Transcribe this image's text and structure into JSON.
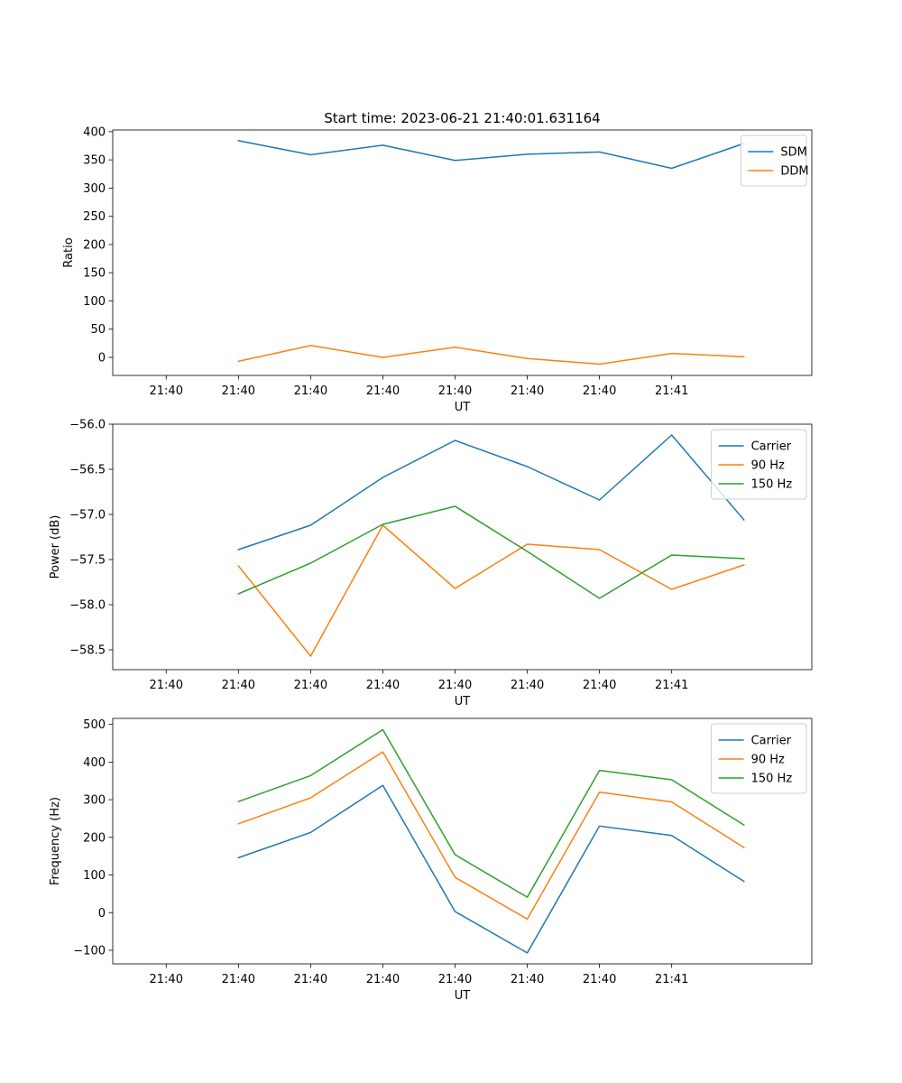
{
  "title": "Start time: 2023-06-21 21:40:01.631164",
  "chart_data": [
    {
      "type": "line",
      "title": "Start time: 2023-06-21 21:40:01.631164",
      "xlabel": "UT",
      "ylabel": "Ratio",
      "x_tick_labels": [
        "21:40",
        "21:40",
        "21:40",
        "21:40",
        "21:40",
        "21:40",
        "21:40",
        "21:41"
      ],
      "xlim": [
        -0.74,
        8.94
      ],
      "x": [
        1,
        2,
        3,
        4,
        5,
        6,
        7,
        8
      ],
      "yticks": [
        0,
        50,
        100,
        150,
        200,
        250,
        300,
        350,
        400
      ],
      "ylim": [
        -32,
        403
      ],
      "legend": "top-right",
      "series": [
        {
          "name": "SDM",
          "color": "#1f77b4",
          "values": [
            384,
            359,
            376,
            349,
            360,
            364,
            335,
            379
          ]
        },
        {
          "name": "DDM",
          "color": "#ff7f0e",
          "values": [
            -7,
            21,
            0,
            18,
            -2,
            -12,
            7,
            1
          ]
        }
      ]
    },
    {
      "type": "line",
      "xlabel": "UT",
      "ylabel": "Power (dB)",
      "x_tick_labels": [
        "21:40",
        "21:40",
        "21:40",
        "21:40",
        "21:40",
        "21:40",
        "21:40",
        "21:41"
      ],
      "xlim": [
        -0.74,
        8.94
      ],
      "x": [
        1,
        2,
        3,
        4,
        5,
        6,
        7,
        8
      ],
      "yticks": [
        -58.5,
        -58.0,
        -57.5,
        -57.0,
        -56.5,
        -56.0
      ],
      "ytick_labels": [
        "−58.5",
        "−58.0",
        "−57.5",
        "−57.0",
        "−56.5",
        "−56.0"
      ],
      "ylim": [
        -58.72,
        -56.0
      ],
      "legend": "top-right",
      "series": [
        {
          "name": "Carrier",
          "color": "#1f77b4",
          "values": [
            -57.39,
            -57.12,
            -56.59,
            -56.18,
            -56.47,
            -56.84,
            -56.12,
            -57.06
          ]
        },
        {
          "name": "90 Hz",
          "color": "#ff7f0e",
          "values": [
            -57.57,
            -58.57,
            -57.12,
            -57.82,
            -57.33,
            -57.39,
            -57.83,
            -57.56
          ]
        },
        {
          "name": "150 Hz",
          "color": "#2ca02c",
          "values": [
            -57.88,
            -57.54,
            -57.11,
            -56.91,
            -57.41,
            -57.93,
            -57.45,
            -57.49
          ]
        }
      ]
    },
    {
      "type": "line",
      "xlabel": "UT",
      "ylabel": "Frequency (Hz)",
      "x_tick_labels": [
        "21:40",
        "21:40",
        "21:40",
        "21:40",
        "21:40",
        "21:40",
        "21:40",
        "21:41"
      ],
      "xlim": [
        -0.74,
        8.94
      ],
      "x": [
        1,
        2,
        3,
        4,
        5,
        6,
        7,
        8
      ],
      "yticks": [
        -100,
        0,
        100,
        200,
        300,
        400,
        500
      ],
      "ytick_labels": [
        "−100",
        "0",
        "100",
        "200",
        "300",
        "400",
        "500"
      ],
      "ylim": [
        -136,
        516
      ],
      "legend": "top-right",
      "series": [
        {
          "name": "Carrier",
          "color": "#1f77b4",
          "values": [
            146,
            213,
            338,
            3,
            -107,
            230,
            205,
            83
          ]
        },
        {
          "name": "90 Hz",
          "color": "#ff7f0e",
          "values": [
            236,
            305,
            427,
            94,
            -17,
            320,
            294,
            173
          ]
        },
        {
          "name": "150 Hz",
          "color": "#2ca02c",
          "values": [
            295,
            364,
            486,
            154,
            41,
            378,
            353,
            233
          ]
        }
      ]
    }
  ]
}
